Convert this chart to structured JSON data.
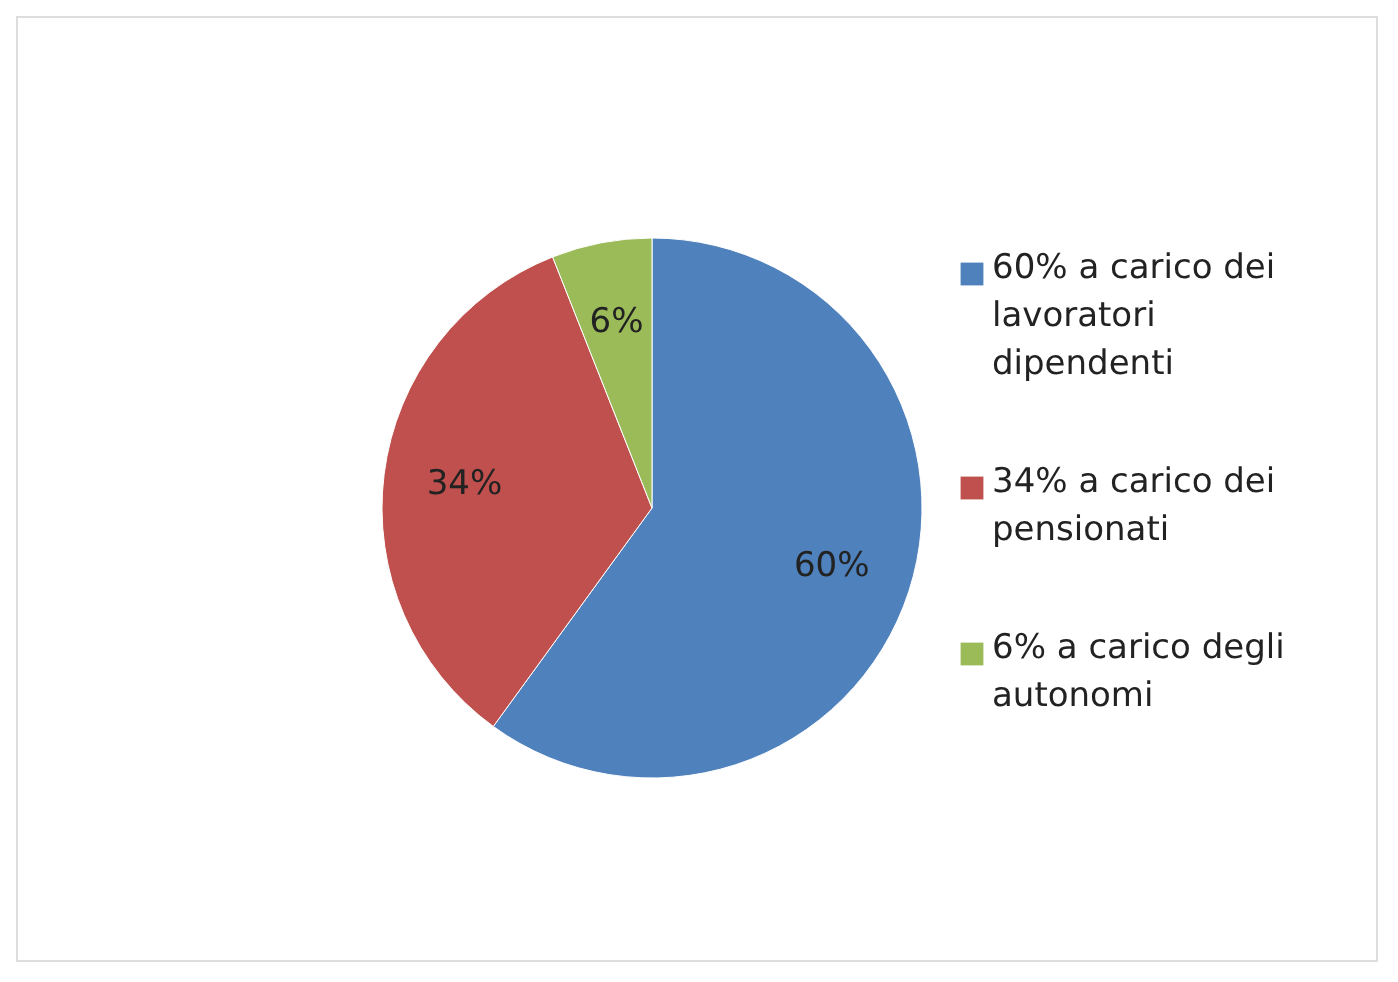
{
  "chart_data": {
    "type": "pie",
    "categories": [
      "60% a carico dei lavoratori dipendenti",
      "34% a carico dei pensionati",
      "6% a carico degli autonomi"
    ],
    "values": [
      60,
      34,
      6
    ],
    "colors": [
      "#4f81bd",
      "#c0504d",
      "#9bbb59"
    ],
    "value_labels": [
      "60%",
      "34%",
      "6%"
    ],
    "legend": "right"
  }
}
